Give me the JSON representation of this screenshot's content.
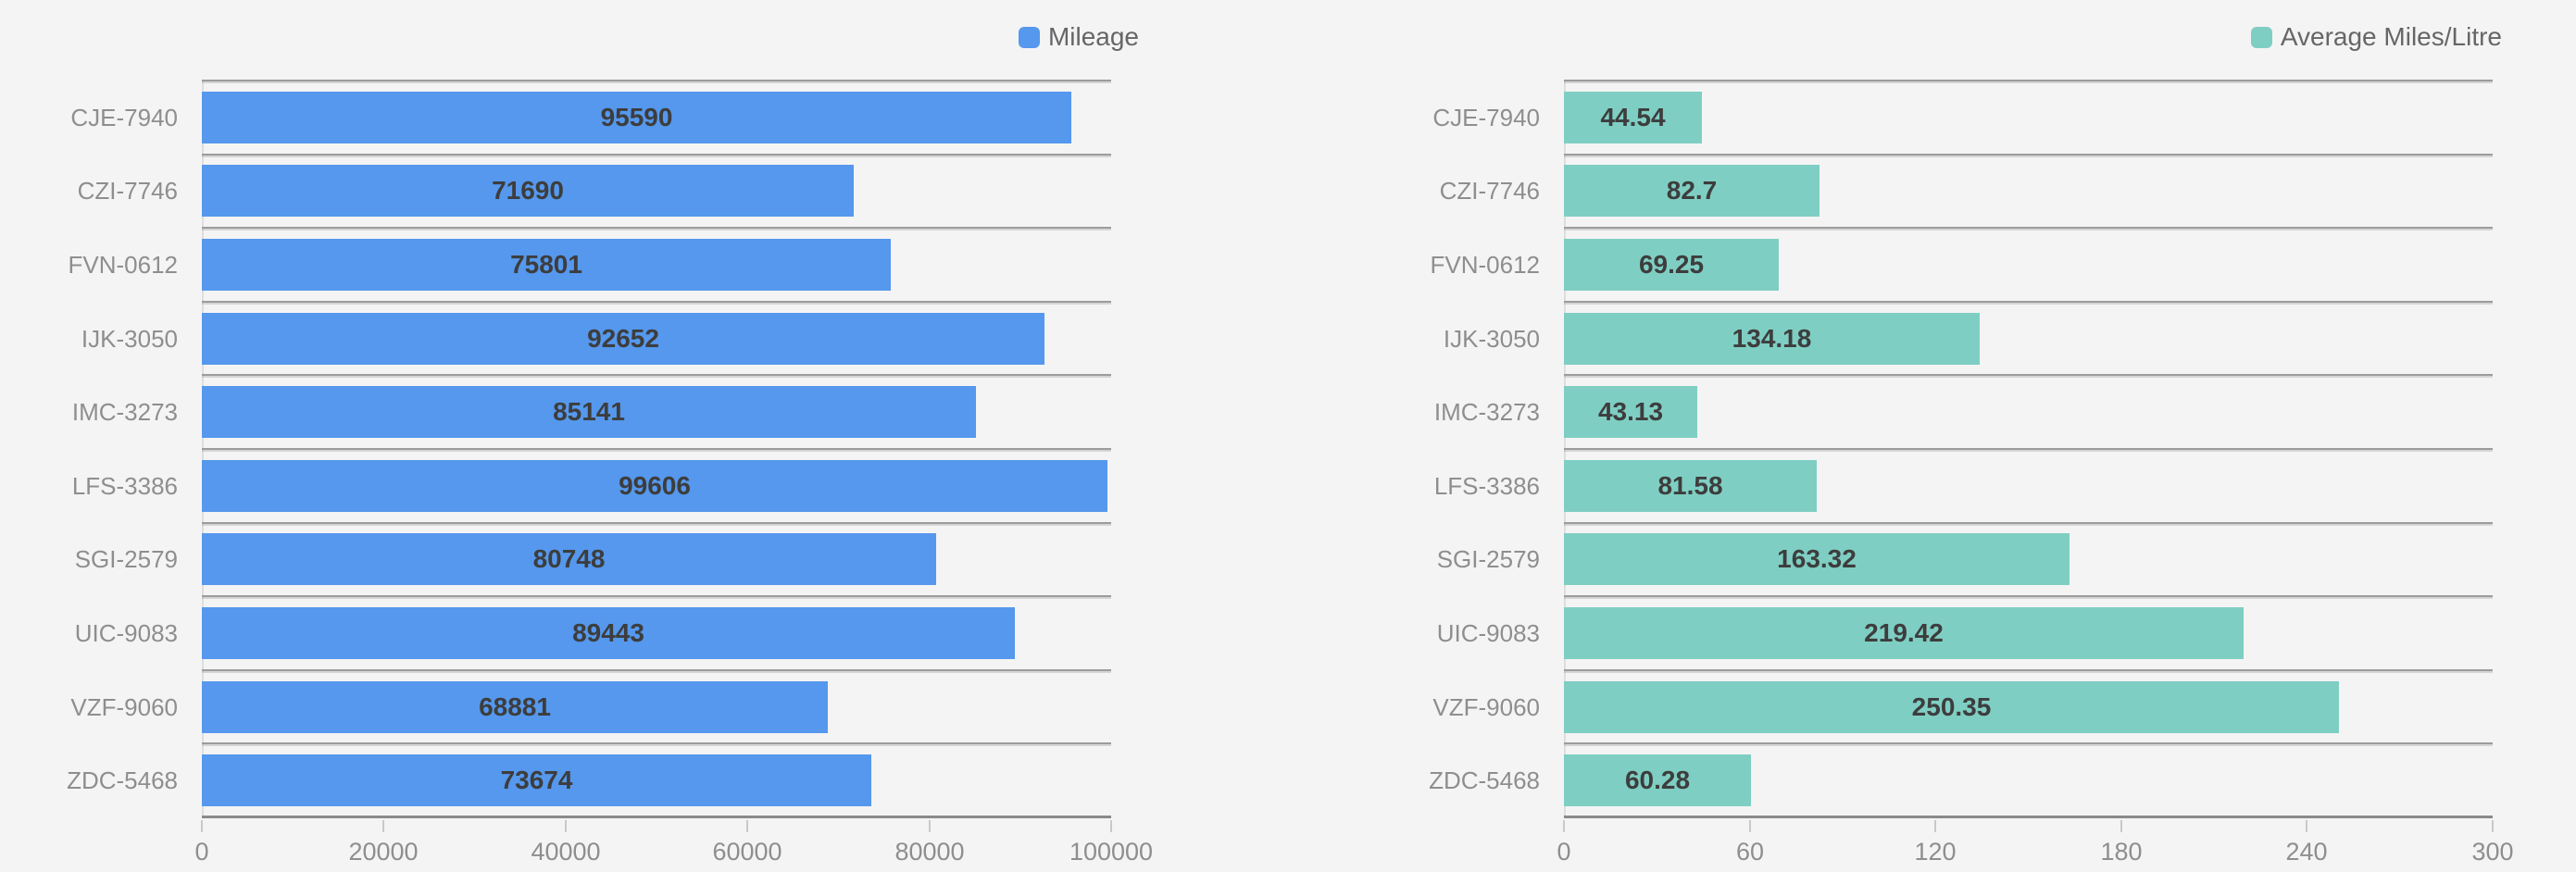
{
  "page": {
    "background_color": "#f4f4f4"
  },
  "colors": {
    "mileage_bar": "#5598ed",
    "avg_miles_bar": "#7fcec3",
    "gridline": "#9c9c9c",
    "axis_line": "#8a8a8a",
    "axis_label_text": "#8e8e8e",
    "category_label_text": "#8e8e8e",
    "value_label_text": "#3d3d3d",
    "legend_text": "#666666"
  },
  "chart_data": [
    {
      "type": "bar",
      "orientation": "horizontal",
      "legend": "Mileage",
      "legend_position": "top-right",
      "color": "#5598ed",
      "grid": "category-separator-lines",
      "categories": [
        "CJE-7940",
        "CZI-7746",
        "FVN-0612",
        "IJK-3050",
        "IMC-3273",
        "LFS-3386",
        "SGI-2579",
        "UIC-9083",
        "VZF-9060",
        "ZDC-5468"
      ],
      "values": [
        95590,
        71690,
        75801,
        92652,
        85141,
        99606,
        80748,
        89443,
        68881,
        73674
      ],
      "value_labels_inside_bars": true,
      "xlim": [
        0,
        100000
      ],
      "xticks": [
        0,
        20000,
        40000,
        60000,
        80000,
        100000
      ],
      "xlabel": "",
      "ylabel": ""
    },
    {
      "type": "bar",
      "orientation": "horizontal",
      "legend": "Average Miles/Litre",
      "legend_position": "top-right",
      "color": "#7fcec3",
      "grid": "category-separator-lines",
      "categories": [
        "CJE-7940",
        "CZI-7746",
        "FVN-0612",
        "IJK-3050",
        "IMC-3273",
        "LFS-3386",
        "SGI-2579",
        "UIC-9083",
        "VZF-9060",
        "ZDC-5468"
      ],
      "values": [
        44.54,
        82.7,
        69.25,
        134.18,
        43.13,
        81.58,
        163.32,
        219.42,
        250.35,
        60.28
      ],
      "value_labels_inside_bars": true,
      "xlim": [
        0,
        300
      ],
      "xticks": [
        0,
        60,
        120,
        180,
        240,
        300
      ],
      "xlabel": "",
      "ylabel": ""
    }
  ]
}
